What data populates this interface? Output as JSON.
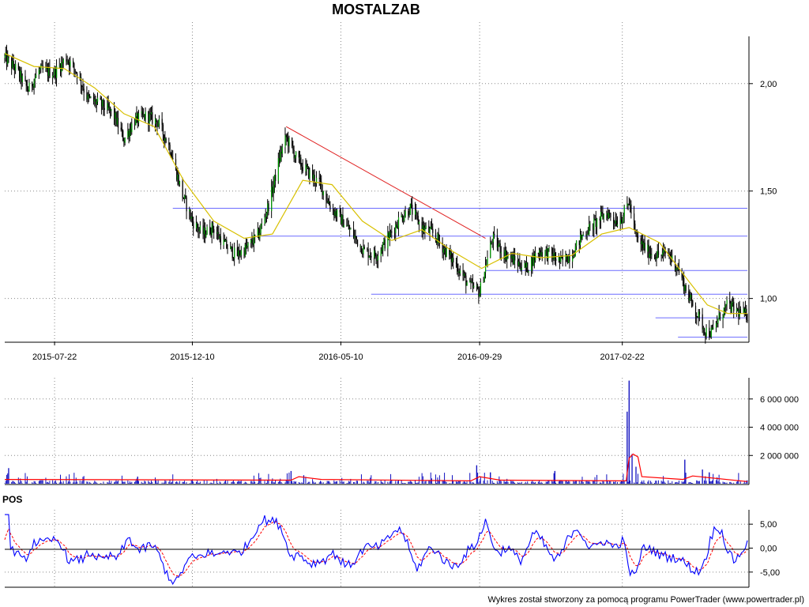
{
  "chart_data": {
    "type": "candlestick",
    "title": "MOSTALZAB",
    "footer": "Wykres został stworzony za pomocą programu PowerTrader (www.powertrader.pl)",
    "date_range": [
      "2015-06-01",
      "2017-06-30"
    ],
    "x_ticks": [
      "2015-07-22",
      "2015-12-10",
      "2016-05-10",
      "2016-09-29",
      "2017-02-22"
    ],
    "price_panel": {
      "y_range": [
        0.8,
        2.22
      ],
      "y_ticks": [
        1.0,
        1.5,
        2.0
      ],
      "y_tick_labels": [
        "1,00",
        "1,50",
        "2,00"
      ],
      "grid": true,
      "price_path": [
        [
          "2015-06-01",
          2.12
        ],
        [
          "2015-06-12",
          2.07
        ],
        [
          "2015-06-25",
          1.97
        ],
        [
          "2015-07-06",
          2.06
        ],
        [
          "2015-07-22",
          2.05
        ],
        [
          "2015-08-03",
          2.12
        ],
        [
          "2015-08-14",
          2.05
        ],
        [
          "2015-08-25",
          1.93
        ],
        [
          "2015-09-08",
          1.9
        ],
        [
          "2015-09-20",
          1.86
        ],
        [
          "2015-10-01",
          1.74
        ],
        [
          "2015-10-12",
          1.83
        ],
        [
          "2015-10-24",
          1.85
        ],
        [
          "2015-11-05",
          1.82
        ],
        [
          "2015-11-17",
          1.7
        ],
        [
          "2015-11-30",
          1.48
        ],
        [
          "2015-12-10",
          1.36
        ],
        [
          "2015-12-20",
          1.3
        ],
        [
          "2015-12-31",
          1.33
        ],
        [
          "2016-01-12",
          1.25
        ],
        [
          "2016-01-24",
          1.2
        ],
        [
          "2016-02-05",
          1.24
        ],
        [
          "2016-02-16",
          1.3
        ],
        [
          "2016-02-27",
          1.45
        ],
        [
          "2016-03-09",
          1.67
        ],
        [
          "2016-03-15",
          1.75
        ],
        [
          "2016-03-27",
          1.64
        ],
        [
          "2016-04-08",
          1.58
        ],
        [
          "2016-04-19",
          1.53
        ],
        [
          "2016-04-30",
          1.42
        ],
        [
          "2016-05-10",
          1.37
        ],
        [
          "2016-05-22",
          1.3
        ],
        [
          "2016-06-03",
          1.22
        ],
        [
          "2016-06-15",
          1.2
        ],
        [
          "2016-06-27",
          1.28
        ],
        [
          "2016-07-09",
          1.37
        ],
        [
          "2016-07-20",
          1.42
        ],
        [
          "2016-08-01",
          1.33
        ],
        [
          "2016-08-13",
          1.3
        ],
        [
          "2016-08-25",
          1.22
        ],
        [
          "2016-09-06",
          1.15
        ],
        [
          "2016-09-18",
          1.06
        ],
        [
          "2016-09-29",
          1.03
        ],
        [
          "2016-10-05",
          1.15
        ],
        [
          "2016-10-12",
          1.28
        ],
        [
          "2016-10-24",
          1.21
        ],
        [
          "2016-11-05",
          1.17
        ],
        [
          "2016-11-16",
          1.14
        ],
        [
          "2016-11-28",
          1.22
        ],
        [
          "2016-12-09",
          1.21
        ],
        [
          "2016-12-21",
          1.17
        ],
        [
          "2017-01-02",
          1.21
        ],
        [
          "2017-01-13",
          1.3
        ],
        [
          "2017-01-25",
          1.35
        ],
        [
          "2017-02-06",
          1.4
        ],
        [
          "2017-02-16",
          1.36
        ],
        [
          "2017-02-22",
          1.38
        ],
        [
          "2017-03-01",
          1.45
        ],
        [
          "2017-03-08",
          1.28
        ],
        [
          "2017-03-20",
          1.22
        ],
        [
          "2017-04-01",
          1.2
        ],
        [
          "2017-04-10",
          1.21
        ],
        [
          "2017-04-20",
          1.14
        ],
        [
          "2017-04-28",
          1.04
        ],
        [
          "2017-05-08",
          0.94
        ],
        [
          "2017-05-18",
          0.85
        ],
        [
          "2017-05-25",
          0.84
        ],
        [
          "2017-06-02",
          0.92
        ],
        [
          "2017-06-10",
          0.97
        ],
        [
          "2017-06-20",
          0.94
        ],
        [
          "2017-06-30",
          0.92
        ]
      ],
      "moving_average_path": [
        [
          "2015-06-01",
          2.14
        ],
        [
          "2015-07-01",
          2.08
        ],
        [
          "2015-08-01",
          2.07
        ],
        [
          "2015-09-01",
          1.98
        ],
        [
          "2015-10-01",
          1.86
        ],
        [
          "2015-11-01",
          1.8
        ],
        [
          "2015-12-01",
          1.55
        ],
        [
          "2016-01-01",
          1.36
        ],
        [
          "2016-02-01",
          1.28
        ],
        [
          "2016-03-01",
          1.3
        ],
        [
          "2016-04-01",
          1.55
        ],
        [
          "2016-05-01",
          1.53
        ],
        [
          "2016-06-01",
          1.36
        ],
        [
          "2016-07-01",
          1.27
        ],
        [
          "2016-08-01",
          1.32
        ],
        [
          "2016-09-01",
          1.22
        ],
        [
          "2016-10-01",
          1.14
        ],
        [
          "2016-11-01",
          1.21
        ],
        [
          "2016-12-01",
          1.19
        ],
        [
          "2017-01-01",
          1.2
        ],
        [
          "2017-02-01",
          1.3
        ],
        [
          "2017-03-01",
          1.33
        ],
        [
          "2017-04-01",
          1.26
        ],
        [
          "2017-05-01",
          1.08
        ],
        [
          "2017-05-20",
          0.97
        ],
        [
          "2017-06-10",
          0.93
        ],
        [
          "2017-06-30",
          0.93
        ]
      ],
      "trendlines": [
        {
          "kind": "downtrend",
          "color": "#e02020",
          "from": [
            "2016-03-15",
            1.8
          ],
          "to": [
            "2016-10-05",
            1.28
          ]
        },
        {
          "kind": "horizontal",
          "color": "#6b6bff",
          "from": [
            "2015-11-20",
            1.42
          ],
          "to": [
            "2017-06-30",
            1.42
          ]
        },
        {
          "kind": "horizontal",
          "color": "#6b6bff",
          "from": [
            "2016-02-15",
            1.29
          ],
          "to": [
            "2017-06-30",
            1.29
          ]
        },
        {
          "kind": "horizontal",
          "color": "#6b6bff",
          "from": [
            "2016-10-05",
            1.13
          ],
          "to": [
            "2017-06-30",
            1.13
          ]
        },
        {
          "kind": "horizontal",
          "color": "#6b6bff",
          "from": [
            "2016-06-10",
            1.02
          ],
          "to": [
            "2017-06-30",
            1.02
          ]
        },
        {
          "kind": "horizontal",
          "color": "#6b6bff",
          "from": [
            "2017-03-28",
            0.91
          ],
          "to": [
            "2017-06-30",
            0.91
          ]
        },
        {
          "kind": "horizontal",
          "color": "#6b6bff",
          "from": [
            "2017-04-20",
            0.82
          ],
          "to": [
            "2017-06-30",
            0.82
          ]
        }
      ]
    },
    "volume_panel": {
      "y_range": [
        0,
        7500000
      ],
      "y_ticks": [
        2000000,
        4000000,
        6000000
      ],
      "y_tick_labels": [
        "2 000 000",
        "4 000 000",
        "6 000 000"
      ],
      "spikes": [
        [
          "2015-06-05",
          1100000
        ],
        [
          "2015-10-15",
          500000
        ],
        [
          "2016-03-20",
          900000
        ],
        [
          "2016-04-02",
          600000
        ],
        [
          "2016-09-26",
          1300000
        ],
        [
          "2016-10-10",
          800000
        ],
        [
          "2016-12-15",
          900000
        ],
        [
          "2017-03-01",
          7300000
        ],
        [
          "2017-02-27",
          5100000
        ],
        [
          "2017-03-04",
          2100000
        ],
        [
          "2017-03-08",
          1200000
        ],
        [
          "2017-04-27",
          1700000
        ],
        [
          "2017-05-15",
          1000000
        ],
        [
          "2017-05-22",
          800000
        ]
      ],
      "avg_line": [
        [
          "2015-06-01",
          300000
        ],
        [
          "2016-03-20",
          250000
        ],
        [
          "2016-03-28",
          500000
        ],
        [
          "2016-04-20",
          300000
        ],
        [
          "2016-09-20",
          200000
        ],
        [
          "2016-09-29",
          500000
        ],
        [
          "2016-10-20",
          250000
        ],
        [
          "2017-02-26",
          200000
        ],
        [
          "2017-03-01",
          1800000
        ],
        [
          "2017-03-05",
          2100000
        ],
        [
          "2017-03-10",
          1900000
        ],
        [
          "2017-03-14",
          500000
        ],
        [
          "2017-04-25",
          300000
        ],
        [
          "2017-05-05",
          550000
        ],
        [
          "2017-06-30",
          150000
        ]
      ]
    },
    "pos_panel": {
      "label": "POS",
      "y_range": [
        -8,
        8
      ],
      "y_ticks": [
        -5,
        0,
        5
      ],
      "y_tick_labels": [
        "-5,00",
        "0,00",
        "5,00"
      ]
    }
  },
  "colors": {
    "candle_body": "#000000",
    "candle_up": "#00a000",
    "moving_average": "#d8c000",
    "volume_bar": "#1010c0",
    "volume_avg": "#ff0000",
    "pos_line": "#0000ff",
    "pos_signal": "#ff0000",
    "grid": "#888888"
  }
}
